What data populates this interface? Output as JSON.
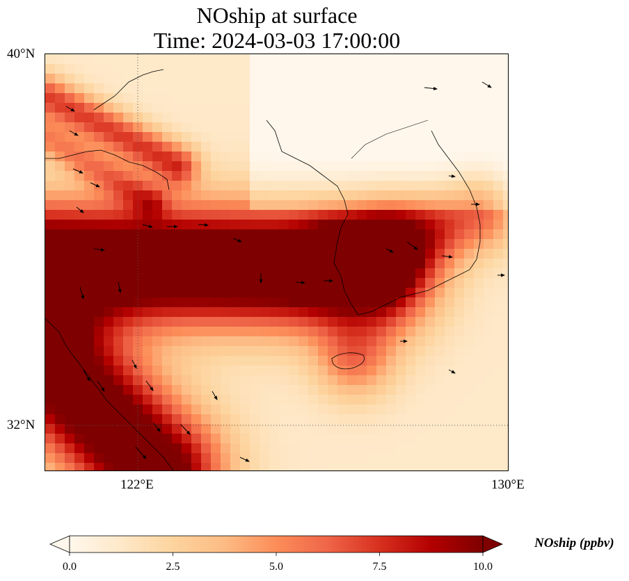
{
  "figure": {
    "title_line1": "NOship at surface",
    "title_line2": "Time: 2024-03-03 17:00:00"
  },
  "map": {
    "extent": {
      "lon_min": 120.0,
      "lon_max": 130.0,
      "lat_min": 31.0,
      "lat_max": 40.0
    },
    "gridlines": {
      "lon": [
        122,
        130
      ],
      "lat": [
        32,
        40
      ],
      "style": "dotted"
    },
    "lat_ticks": [
      "40°N",
      "32°N"
    ],
    "lon_ticks": [
      "122°E",
      "130°E"
    ]
  },
  "colorbar": {
    "label": "NOship (ppbv)",
    "colormap": "OrRd",
    "min": 0.0,
    "max": 10.0,
    "extend": "both",
    "ticks": [
      "0.0",
      "2.5",
      "5.0",
      "7.5",
      "10.0"
    ],
    "tick_values": [
      0.0,
      2.5,
      5.0,
      7.5,
      10.0
    ],
    "colors": [
      "#fff7ec",
      "#fee8c8",
      "#fdd49e",
      "#fdbb84",
      "#fc8d59",
      "#ef6548",
      "#d7301f",
      "#b30000",
      "#7f0000"
    ]
  }
}
